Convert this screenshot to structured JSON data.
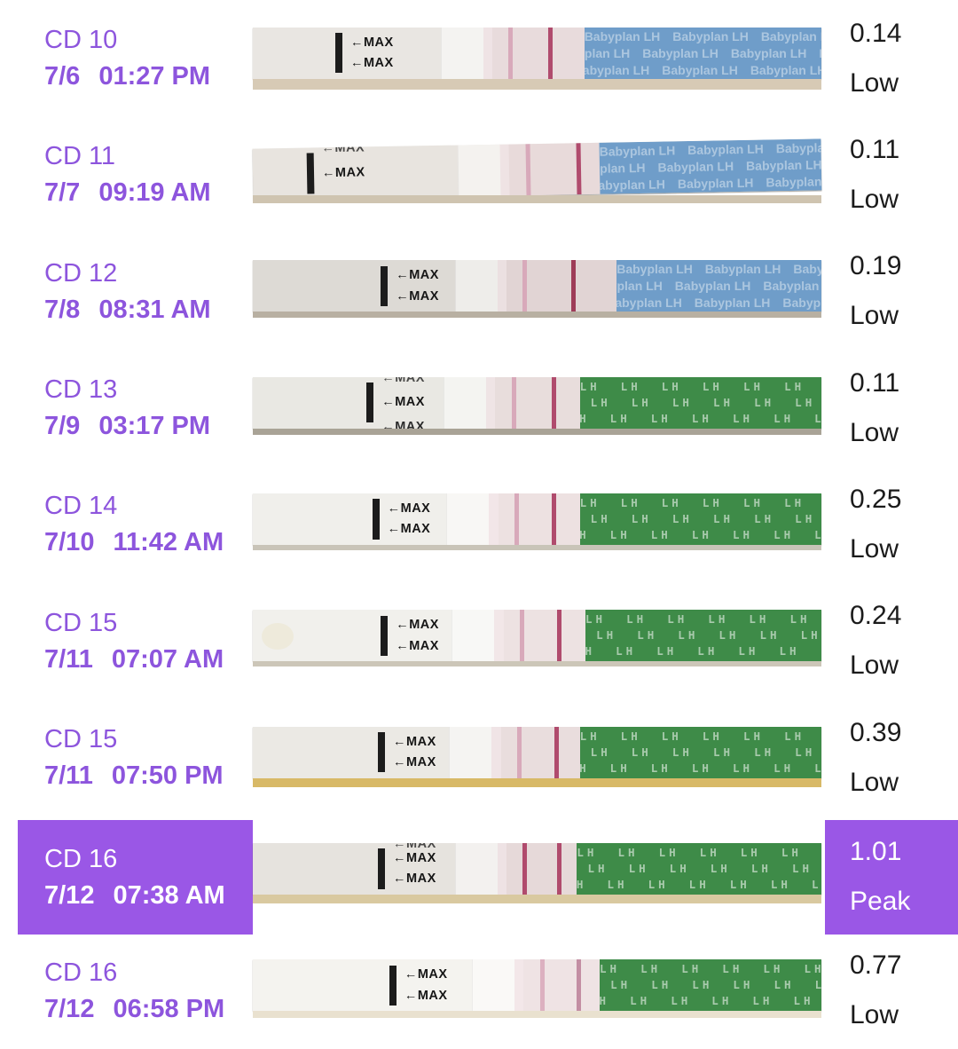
{
  "colors": {
    "accent": "#9a57e6",
    "accent_text": "#8d55dd",
    "result_text": "#1b1b1b",
    "strip_blue": "#6f9dc9",
    "strip_green": "#3e8b48"
  },
  "strip_labels": {
    "max": "←MAX",
    "babyplan": "Babyplan LH",
    "lh": "LH"
  },
  "rows": [
    {
      "cd": "CD 10",
      "date": "7/6",
      "time": "01:27 PM",
      "value": "0.14",
      "status": "Low",
      "highlighted": false,
      "strip_brand": "Babyplan LH"
    },
    {
      "cd": "CD 11",
      "date": "7/7",
      "time": "09:19 AM",
      "value": "0.11",
      "status": "Low",
      "highlighted": false,
      "strip_brand": "Babyplan LH"
    },
    {
      "cd": "CD 12",
      "date": "7/8",
      "time": "08:31 AM",
      "value": "0.19",
      "status": "Low",
      "highlighted": false,
      "strip_brand": "Babyplan LH"
    },
    {
      "cd": "CD 13",
      "date": "7/9",
      "time": "03:17 PM",
      "value": "0.11",
      "status": "Low",
      "highlighted": false,
      "strip_brand": "LH"
    },
    {
      "cd": "CD 14",
      "date": "7/10",
      "time": "11:42 AM",
      "value": "0.25",
      "status": "Low",
      "highlighted": false,
      "strip_brand": "LH"
    },
    {
      "cd": "CD 15",
      "date": "7/11",
      "time": "07:07 AM",
      "value": "0.24",
      "status": "Low",
      "highlighted": false,
      "strip_brand": "LH"
    },
    {
      "cd": "CD 15",
      "date": "7/11",
      "time": "07:50 PM",
      "value": "0.39",
      "status": "Low",
      "highlighted": false,
      "strip_brand": "LH"
    },
    {
      "cd": "CD 16",
      "date": "7/12",
      "time": "07:38 AM",
      "value": "1.01",
      "status": "Peak",
      "highlighted": true,
      "strip_brand": "LH"
    },
    {
      "cd": "CD 16",
      "date": "7/12",
      "time": "06:58 PM",
      "value": "0.77",
      "status": "Low",
      "highlighted": false,
      "strip_brand": "LH"
    }
  ]
}
